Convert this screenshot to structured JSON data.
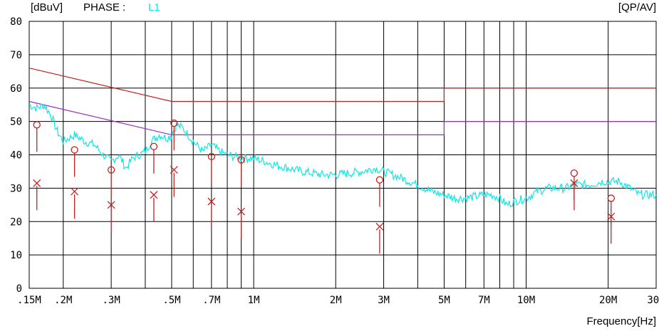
{
  "header": {
    "unit": "[dBuV]",
    "phase_label": "PHASE :",
    "phase_value": "L1",
    "detector": "[QP/AV]"
  },
  "chart_data": {
    "type": "line",
    "xlabel": "Frequency[Hz]",
    "ylabel": "[dBuV]",
    "x_scale": "log",
    "xlim": [
      150000,
      30000000
    ],
    "ylim": [
      0,
      80
    ],
    "grid": true,
    "y_ticks": [
      0,
      10,
      20,
      30,
      40,
      50,
      60,
      70,
      80
    ],
    "x_ticks": [
      {
        "label": ".15M",
        "value": 150000
      },
      {
        "label": ".2M",
        "value": 200000
      },
      {
        "label": ".3M",
        "value": 300000
      },
      {
        "label": ".5M",
        "value": 500000
      },
      {
        "label": ".7M",
        "value": 700000
      },
      {
        "label": "1M",
        "value": 1000000
      },
      {
        "label": "2M",
        "value": 2000000
      },
      {
        "label": "3M",
        "value": 3000000
      },
      {
        "label": "5M",
        "value": 5000000
      },
      {
        "label": "7M",
        "value": 7000000
      },
      {
        "label": "10M",
        "value": 10000000
      },
      {
        "label": "20M",
        "value": 20000000
      },
      {
        "label": "30M",
        "value": 30000000
      }
    ],
    "colors": {
      "limit": "#c8201e",
      "avg_limit": "#9b30c0",
      "trace": "#10e6e6",
      "grid": "#000000",
      "marker": "#c8201e",
      "cross_dark": "#000000"
    },
    "limit_lines": [
      {
        "name": "QP limit",
        "points": [
          [
            150000,
            66
          ],
          [
            500000,
            56
          ],
          [
            5000000,
            56
          ],
          [
            5000000,
            60
          ],
          [
            30000000,
            60
          ]
        ]
      },
      {
        "name": "AV limit",
        "points": [
          [
            150000,
            56
          ],
          [
            500000,
            46
          ],
          [
            5000000,
            46
          ],
          [
            5000000,
            50
          ],
          [
            30000000,
            50
          ]
        ]
      }
    ],
    "series": [
      {
        "values": [
          [
            150000,
            55
          ],
          [
            160000,
            54
          ],
          [
            170000,
            55
          ],
          [
            180000,
            52
          ],
          [
            190000,
            47
          ],
          [
            200000,
            44
          ],
          [
            220000,
            46
          ],
          [
            240000,
            44
          ],
          [
            260000,
            43
          ],
          [
            280000,
            40
          ],
          [
            300000,
            38
          ],
          [
            320000,
            40
          ],
          [
            340000,
            36
          ],
          [
            360000,
            39
          ],
          [
            380000,
            40
          ],
          [
            400000,
            41
          ],
          [
            420000,
            44
          ],
          [
            450000,
            46
          ],
          [
            480000,
            45
          ],
          [
            500000,
            46
          ],
          [
            520000,
            49
          ],
          [
            550000,
            48
          ],
          [
            600000,
            44
          ],
          [
            650000,
            41
          ],
          [
            700000,
            43
          ],
          [
            750000,
            41
          ],
          [
            800000,
            40
          ],
          [
            900000,
            39
          ],
          [
            1000000,
            39
          ],
          [
            1200000,
            37
          ],
          [
            1500000,
            35
          ],
          [
            1800000,
            34
          ],
          [
            2000000,
            34
          ],
          [
            2500000,
            35
          ],
          [
            2800000,
            36
          ],
          [
            3000000,
            35
          ],
          [
            3500000,
            33
          ],
          [
            4000000,
            31
          ],
          [
            4500000,
            29
          ],
          [
            5000000,
            28
          ],
          [
            5500000,
            27
          ],
          [
            6000000,
            27
          ],
          [
            7000000,
            28
          ],
          [
            7500000,
            28
          ],
          [
            8000000,
            27
          ],
          [
            8500000,
            25
          ],
          [
            9000000,
            26
          ],
          [
            10000000,
            27
          ],
          [
            11000000,
            29
          ],
          [
            12000000,
            30
          ],
          [
            14000000,
            30
          ],
          [
            15000000,
            31
          ],
          [
            17000000,
            31
          ],
          [
            19000000,
            32
          ],
          [
            20000000,
            32
          ],
          [
            22000000,
            32
          ],
          [
            24000000,
            30
          ],
          [
            26000000,
            28
          ],
          [
            28000000,
            28
          ],
          [
            30000000,
            28
          ]
        ]
      }
    ],
    "qp_markers": [
      [
        160000,
        49
      ],
      [
        220000,
        41.5
      ],
      [
        300000,
        35.5
      ],
      [
        430000,
        42.5
      ],
      [
        510000,
        49.5
      ],
      [
        700000,
        39.5
      ],
      [
        900000,
        38.5
      ],
      [
        2900000,
        32.5
      ],
      [
        15000000,
        34.5
      ],
      [
        20500000,
        27
      ]
    ],
    "av_markers": [
      [
        160000,
        31.5
      ],
      [
        220000,
        29
      ],
      [
        300000,
        25
      ],
      [
        430000,
        28
      ],
      [
        510000,
        35.5
      ],
      [
        700000,
        26
      ],
      [
        900000,
        23
      ],
      [
        2900000,
        18.5
      ],
      [
        15000000,
        31.5
      ],
      [
        20500000,
        21.5
      ]
    ]
  }
}
